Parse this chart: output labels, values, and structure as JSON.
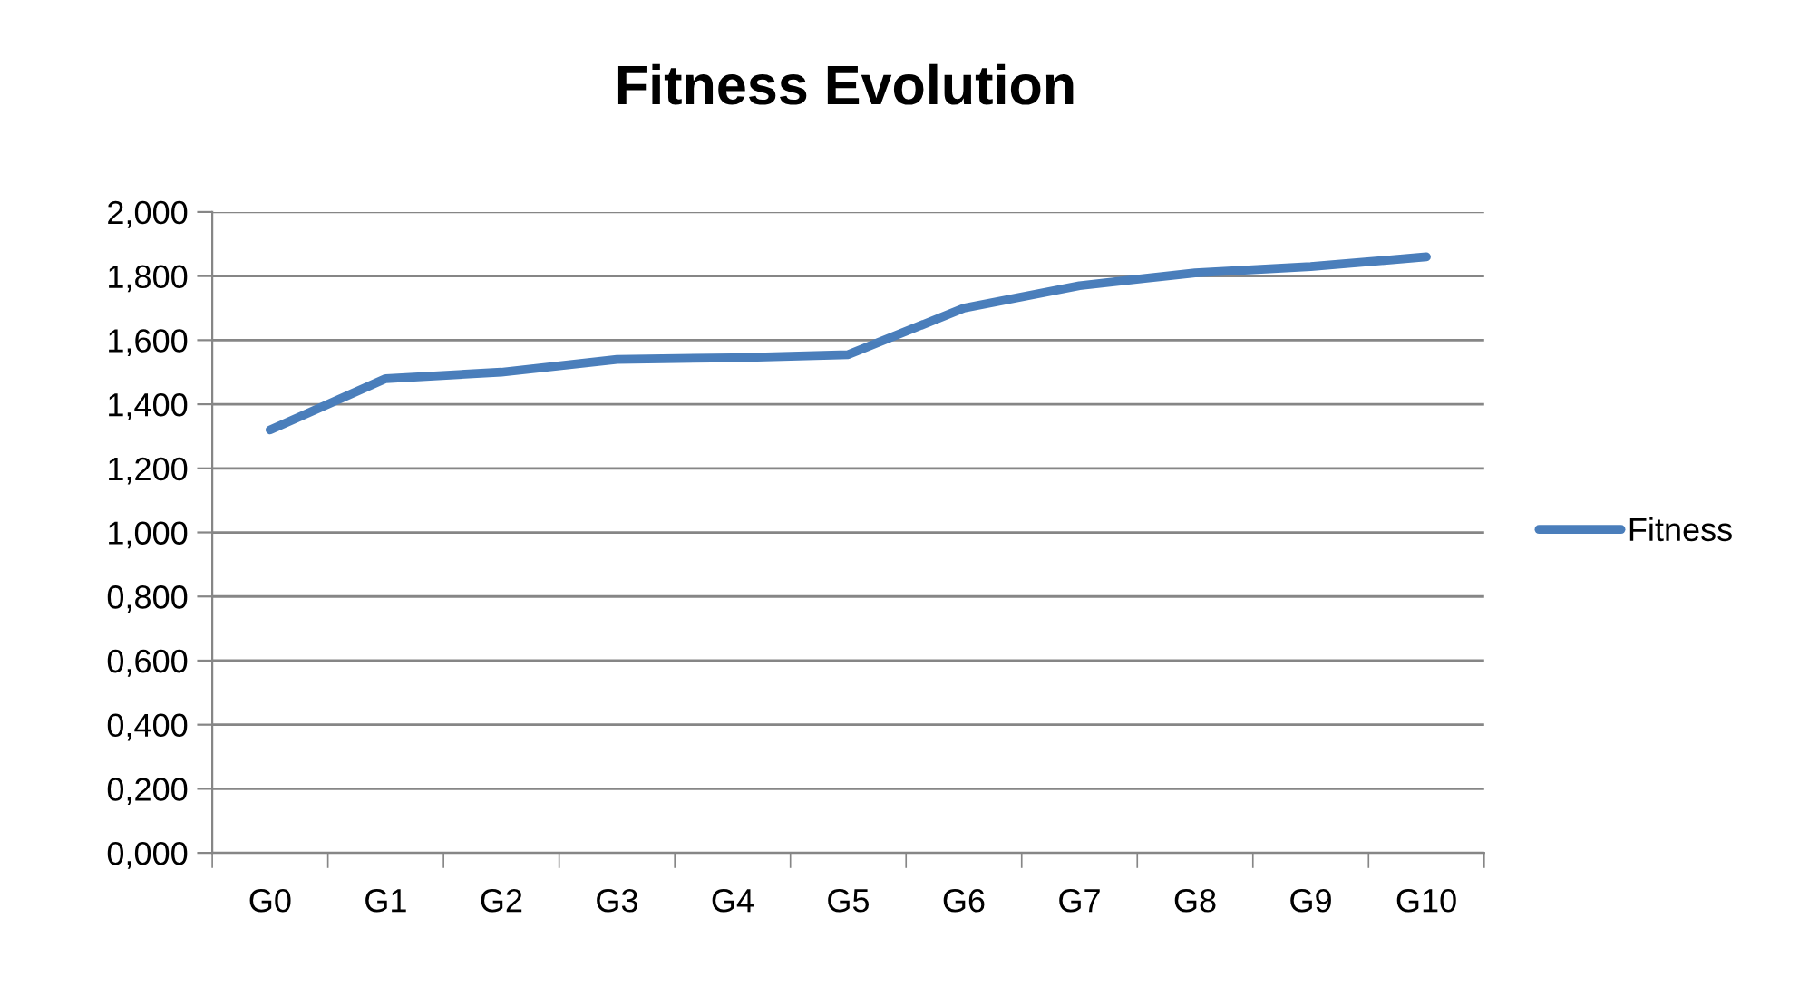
{
  "chart_data": {
    "type": "line",
    "title": "Fitness Evolution",
    "categories": [
      "G0",
      "G1",
      "G2",
      "G3",
      "G4",
      "G5",
      "G6",
      "G7",
      "G8",
      "G9",
      "G10"
    ],
    "series": [
      {
        "name": "Fitness",
        "color": "#4a7ebb",
        "values": [
          1.32,
          1.48,
          1.5,
          1.54,
          1.545,
          1.555,
          1.7,
          1.77,
          1.81,
          1.83,
          1.86
        ]
      }
    ],
    "ylim": [
      0,
      2
    ],
    "yticks": [
      {
        "value": 0,
        "label": "0,000"
      },
      {
        "value": 0.2,
        "label": "0,200"
      },
      {
        "value": 0.4,
        "label": "0,400"
      },
      {
        "value": 0.6,
        "label": "0,600"
      },
      {
        "value": 0.8,
        "label": "0,800"
      },
      {
        "value": 1.0,
        "label": "1,000"
      },
      {
        "value": 1.2,
        "label": "1,200"
      },
      {
        "value": 1.4,
        "label": "1,400"
      },
      {
        "value": 1.6,
        "label": "1,600"
      },
      {
        "value": 1.8,
        "label": "1,800"
      },
      {
        "value": 2.0,
        "label": "2,000"
      }
    ],
    "grid": "y",
    "legend": "right",
    "marker": "none",
    "line_style": "solid"
  }
}
